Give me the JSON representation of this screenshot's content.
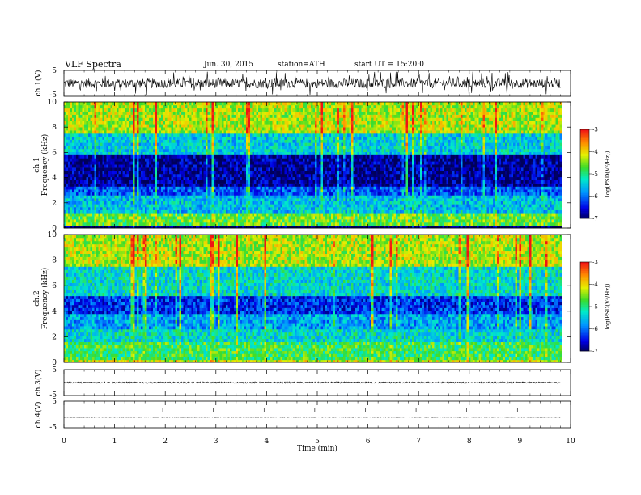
{
  "header": {
    "title": "VLF Spectra",
    "date": "Jun. 30, 2015",
    "station": "station=ATH",
    "start": "start UT =   15:20:0"
  },
  "chart_data": [
    {
      "type": "line",
      "id": "ch1-waveform",
      "ylabel": "ch.1(V)",
      "ylim": [
        -5,
        5
      ],
      "yticks": [
        "5",
        "-5"
      ],
      "xlim": [
        0,
        10
      ],
      "x_end": 9.8,
      "baseline": 0,
      "amplitude_range": [
        -1.8,
        1.8
      ],
      "burst_amplitude": 4.5,
      "color": "#000000"
    },
    {
      "type": "heatmap",
      "id": "ch1-spectrogram",
      "ylabel": "ch.1\nFrequency (kHz)",
      "ylim": [
        0,
        10
      ],
      "yticks": [
        "0",
        "2",
        "4",
        "6",
        "8",
        "10"
      ],
      "xlim": [
        0,
        10
      ],
      "x_end": 9.8,
      "colorbar": {
        "label": "log(PSD(V²/Hz))",
        "range": [
          -7,
          -3
        ],
        "ticks": [
          "-3",
          "-4",
          "-5",
          "-6",
          "-7"
        ]
      },
      "bands_khz": [
        {
          "from": 0,
          "to": 0.2,
          "level": -7
        },
        {
          "from": 0.2,
          "to": 1.2,
          "level": -4.6
        },
        {
          "from": 1.2,
          "to": 2.6,
          "level": -5.5
        },
        {
          "from": 2.6,
          "to": 3.3,
          "level": -6.1
        },
        {
          "from": 3.3,
          "to": 5.8,
          "level": -6.8
        },
        {
          "from": 5.8,
          "to": 7.5,
          "level": -5.4
        },
        {
          "from": 7.5,
          "to": 10,
          "level": -4.3
        }
      ]
    },
    {
      "type": "heatmap",
      "id": "ch2-spectrogram",
      "ylabel": "ch.2\nFrequency (kHz)",
      "ylim": [
        0,
        10
      ],
      "yticks": [
        "0",
        "2",
        "4",
        "6",
        "8",
        "10"
      ],
      "xlim": [
        0,
        10
      ],
      "x_end": 9.8,
      "colorbar": {
        "label": "log(PSD(V²/Hz))",
        "range": [
          -7,
          -3
        ],
        "ticks": [
          "-3",
          "-4",
          "-5",
          "-6",
          "-7"
        ]
      },
      "bands_khz": [
        {
          "from": 0,
          "to": 0.2,
          "level": -4.2
        },
        {
          "from": 0.2,
          "to": 1.6,
          "level": -4.8
        },
        {
          "from": 1.6,
          "to": 2.6,
          "level": -5.3
        },
        {
          "from": 2.6,
          "to": 3.8,
          "level": -5.7
        },
        {
          "from": 3.8,
          "to": 5.2,
          "level": -6.3
        },
        {
          "from": 5.2,
          "to": 7.5,
          "level": -5.3
        },
        {
          "from": 7.5,
          "to": 10,
          "level": -4.3
        }
      ]
    },
    {
      "type": "line",
      "id": "ch3-waveform",
      "ylabel": "ch.3(V)",
      "ylim": [
        -5,
        5
      ],
      "yticks": [
        "5",
        "-5"
      ],
      "xlim": [
        0,
        10
      ],
      "x_end": 9.8,
      "baseline": 0,
      "amplitude_range": [
        -0.3,
        0.3
      ],
      "color": "#000000"
    },
    {
      "type": "line",
      "id": "ch4-waveform",
      "ylabel": "ch.4(V)",
      "ylim": [
        -5,
        5
      ],
      "yticks": [
        "5",
        "-5"
      ],
      "xlim": [
        0,
        10
      ],
      "x_end": 9.8,
      "baseline": -1,
      "amplitude_range": [
        -0.1,
        0.1
      ],
      "color": "#000000"
    }
  ],
  "xaxis": {
    "label": "Time (min)",
    "ticks": [
      "0",
      "1",
      "2",
      "3",
      "4",
      "5",
      "6",
      "7",
      "8",
      "9",
      "10"
    ]
  }
}
